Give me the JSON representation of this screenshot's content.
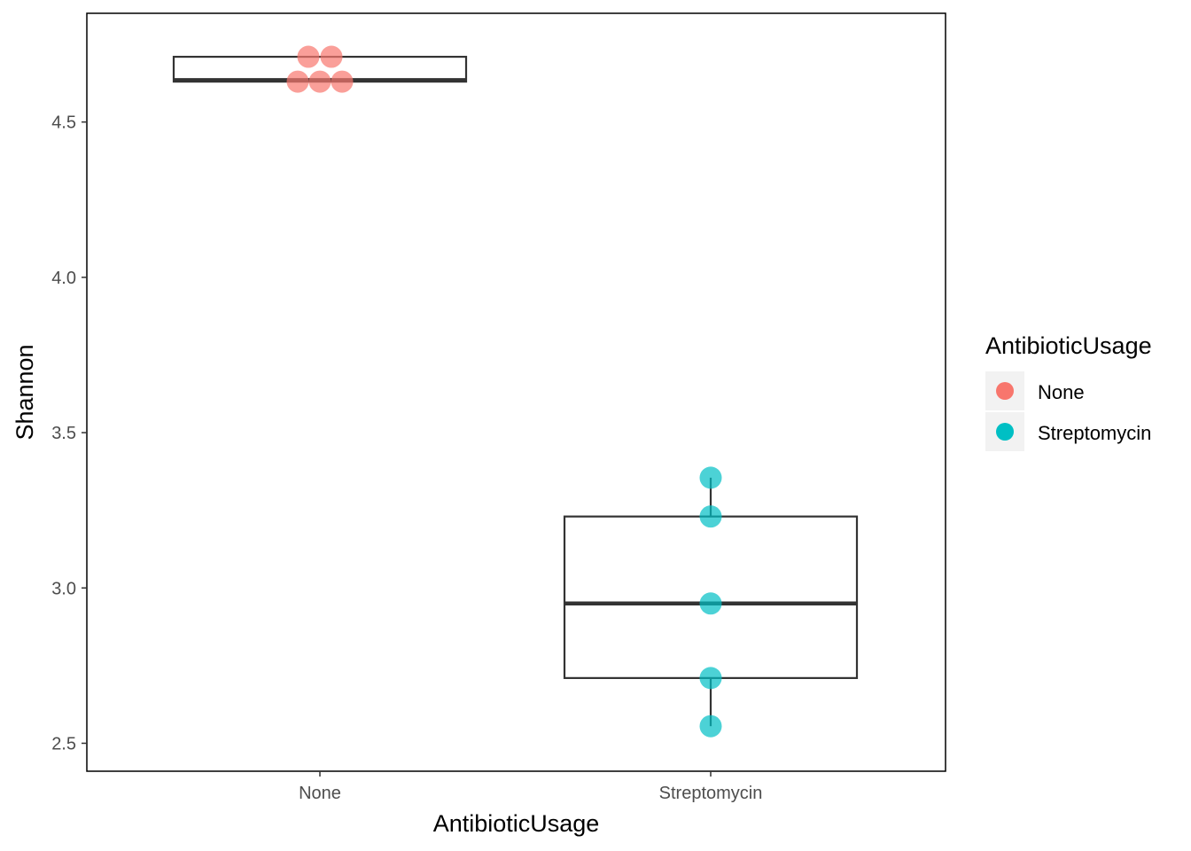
{
  "chart_data": {
    "type": "boxplot",
    "xlabel": "AntibioticUsage",
    "ylabel": "Shannon",
    "categories": [
      "None",
      "Streptomycin"
    ],
    "ylim": [
      2.41,
      4.85
    ],
    "yticks": [
      2.5,
      3.0,
      3.5,
      4.0,
      4.5
    ],
    "ytick_labels": [
      "2.5",
      "3.0",
      "3.5",
      "4.0",
      "4.5"
    ],
    "grid": false,
    "legend": {
      "title": "AntibioticUsage",
      "position": "right",
      "entries": [
        {
          "label": "None",
          "color": "#F8766D"
        },
        {
          "label": "Streptomycin",
          "color": "#00BFC4"
        }
      ]
    },
    "boxes": [
      {
        "category": "None",
        "min": 4.63,
        "q1": 4.63,
        "median": 4.635,
        "q3": 4.71,
        "max": 4.71
      },
      {
        "category": "Streptomycin",
        "min": 2.555,
        "q1": 2.71,
        "median": 2.95,
        "q3": 3.23,
        "max": 3.355
      }
    ],
    "series": [
      {
        "name": "None",
        "color": "#F8766D",
        "points": [
          {
            "x": "None",
            "y": 4.71
          },
          {
            "x": "None",
            "y": 4.71
          },
          {
            "x": "None",
            "y": 4.63
          },
          {
            "x": "None",
            "y": 4.63
          },
          {
            "x": "None",
            "y": 4.63
          }
        ]
      },
      {
        "name": "Streptomycin",
        "color": "#00BFC4",
        "points": [
          {
            "x": "Streptomycin",
            "y": 3.355
          },
          {
            "x": "Streptomycin",
            "y": 3.23
          },
          {
            "x": "Streptomycin",
            "y": 2.95
          },
          {
            "x": "Streptomycin",
            "y": 2.71
          },
          {
            "x": "Streptomycin",
            "y": 2.555
          }
        ]
      }
    ]
  }
}
